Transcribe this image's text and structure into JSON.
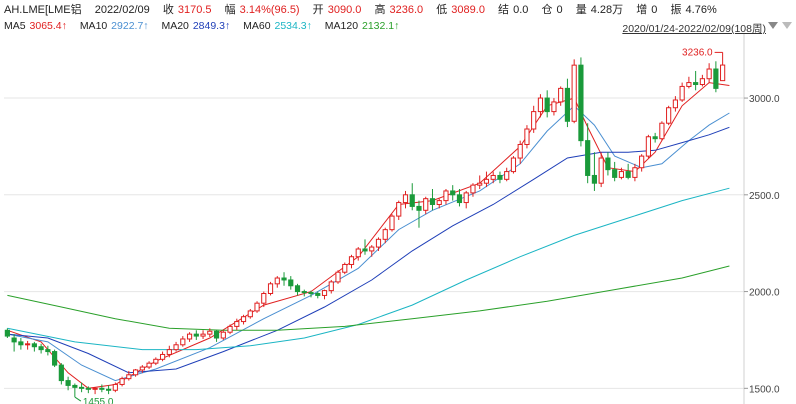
{
  "header": {
    "symbol": "AH.LME[LME铝",
    "date": "2022/02/09",
    "close_label": "收",
    "close_value": "3170.5",
    "change_label": "幅",
    "change_value": "3.14%(96.5)",
    "open_label": "开",
    "open_value": "3090.0",
    "high_label": "高",
    "high_value": "3236.0",
    "low_label": "低",
    "low_value": "3089.0",
    "settle_label": "结",
    "settle_value": "0.0",
    "oi_label": "仓",
    "oi_value": "0",
    "volume_label": "量",
    "volume_value": "4.28万",
    "increase_label": "增",
    "increase_value": "0",
    "amplitude_label": "振",
    "amplitude_value": "4.76%"
  },
  "ma_legend": [
    {
      "label": "MA5",
      "value": "3065.4↑"
    },
    {
      "label": "MA10",
      "value": "2922.7↑"
    },
    {
      "label": "MA20",
      "value": "2849.3↑"
    },
    {
      "label": "MA60",
      "value": "2534.3↑"
    },
    {
      "label": "MA120",
      "value": "2132.1↑"
    }
  ],
  "range_label": "2020/01/24-2022/02/09(108周)",
  "colors": {
    "up": "#e02020",
    "down": "#1a9a3a",
    "ma5": "#e02020",
    "ma10": "#4a8fd1",
    "ma20": "#1f3fb8",
    "ma60": "#1bb5c4",
    "ma120": "#2aa02a",
    "grid": "#e6e6e6"
  },
  "chart_data": {
    "type": "candlestick",
    "ylim": [
      1450,
      3300
    ],
    "y_ticks": [
      "1500.0",
      "2000.0",
      "2500.0",
      "3000.0"
    ],
    "annotations": {
      "max_label": "3236.0",
      "min_label": "1455.0"
    },
    "candles": [
      [
        1800,
        1810,
        1770,
        1760
      ],
      [
        1760,
        1780,
        1740,
        1690
      ],
      [
        1740,
        1760,
        1725,
        1700
      ],
      [
        1725,
        1745,
        1730,
        1700
      ],
      [
        1730,
        1740,
        1715,
        1690
      ],
      [
        1715,
        1730,
        1700,
        1680
      ],
      [
        1700,
        1720,
        1690,
        1670
      ],
      [
        1690,
        1700,
        1620,
        1610
      ],
      [
        1620,
        1630,
        1540,
        1520
      ],
      [
        1540,
        1560,
        1515,
        1490
      ],
      [
        1515,
        1525,
        1505,
        1455
      ],
      [
        1505,
        1530,
        1500,
        1480
      ],
      [
        1500,
        1510,
        1495,
        1475
      ],
      [
        1495,
        1505,
        1500,
        1470
      ],
      [
        1500,
        1520,
        1495,
        1480
      ],
      [
        1495,
        1515,
        1490,
        1470
      ],
      [
        1490,
        1530,
        1520,
        1480
      ],
      [
        1520,
        1560,
        1550,
        1510
      ],
      [
        1550,
        1590,
        1570,
        1540
      ],
      [
        1570,
        1600,
        1595,
        1560
      ],
      [
        1595,
        1620,
        1610,
        1580
      ],
      [
        1610,
        1640,
        1630,
        1600
      ],
      [
        1630,
        1660,
        1650,
        1620
      ],
      [
        1650,
        1690,
        1675,
        1640
      ],
      [
        1675,
        1720,
        1700,
        1660
      ],
      [
        1700,
        1740,
        1725,
        1690
      ],
      [
        1725,
        1770,
        1755,
        1715
      ],
      [
        1755,
        1790,
        1780,
        1740
      ],
      [
        1780,
        1800,
        1770,
        1750
      ],
      [
        1770,
        1800,
        1780,
        1755
      ],
      [
        1780,
        1810,
        1795,
        1765
      ],
      [
        1795,
        1800,
        1760,
        1740
      ],
      [
        1760,
        1800,
        1790,
        1750
      ],
      [
        1790,
        1830,
        1820,
        1780
      ],
      [
        1820,
        1860,
        1845,
        1800
      ],
      [
        1845,
        1880,
        1870,
        1830
      ],
      [
        1870,
        1910,
        1900,
        1860
      ],
      [
        1900,
        1950,
        1940,
        1890
      ],
      [
        1940,
        2000,
        1990,
        1920
      ],
      [
        1990,
        2050,
        2040,
        1980
      ],
      [
        2040,
        2080,
        2070,
        2020
      ],
      [
        2070,
        2100,
        2060,
        2030
      ],
      [
        2060,
        2080,
        2030,
        2010
      ],
      [
        2030,
        2040,
        2000,
        1980
      ],
      [
        2000,
        2010,
        1995,
        1975
      ],
      [
        1995,
        2005,
        1990,
        1970
      ],
      [
        1990,
        2000,
        1980,
        1965
      ],
      [
        1980,
        2010,
        2005,
        1960
      ],
      [
        2005,
        2060,
        2050,
        1990
      ],
      [
        2050,
        2110,
        2100,
        2040
      ],
      [
        2100,
        2150,
        2140,
        2090
      ],
      [
        2140,
        2190,
        2180,
        2120
      ],
      [
        2180,
        2230,
        2220,
        2160
      ],
      [
        2220,
        2270,
        2210,
        2190
      ],
      [
        2210,
        2240,
        2230,
        2180
      ],
      [
        2230,
        2280,
        2270,
        2210
      ],
      [
        2270,
        2330,
        2320,
        2250
      ],
      [
        2320,
        2400,
        2390,
        2310
      ],
      [
        2390,
        2470,
        2460,
        2370
      ],
      [
        2460,
        2520,
        2500,
        2430
      ],
      [
        2500,
        2560,
        2440,
        2420
      ],
      [
        2440,
        2470,
        2420,
        2330
      ],
      [
        2420,
        2490,
        2480,
        2400
      ],
      [
        2480,
        2530,
        2450,
        2420
      ],
      [
        2450,
        2480,
        2470,
        2430
      ],
      [
        2470,
        2530,
        2520,
        2450
      ],
      [
        2520,
        2550,
        2500,
        2470
      ],
      [
        2500,
        2530,
        2460,
        2440
      ],
      [
        2460,
        2520,
        2510,
        2430
      ],
      [
        2510,
        2560,
        2550,
        2490
      ],
      [
        2550,
        2600,
        2560,
        2530
      ],
      [
        2560,
        2620,
        2580,
        2540
      ],
      [
        2580,
        2620,
        2600,
        2560
      ],
      [
        2600,
        2620,
        2580,
        2560
      ],
      [
        2580,
        2640,
        2620,
        2570
      ],
      [
        2620,
        2700,
        2690,
        2610
      ],
      [
        2690,
        2780,
        2760,
        2660
      ],
      [
        2760,
        2860,
        2840,
        2740
      ],
      [
        2840,
        2960,
        2930,
        2820
      ],
      [
        2930,
        3020,
        3000,
        2900
      ],
      [
        3000,
        3040,
        2930,
        2900
      ],
      [
        2930,
        3000,
        2980,
        2910
      ],
      [
        2980,
        3060,
        3050,
        2960
      ],
      [
        3050,
        3100,
        2880,
        2850
      ],
      [
        2880,
        3200,
        3170,
        2870
      ],
      [
        3170,
        3210,
        2780,
        2750
      ],
      [
        2780,
        2870,
        2600,
        2560
      ],
      [
        2600,
        2720,
        2560,
        2520
      ],
      [
        2560,
        2720,
        2690,
        2540
      ],
      [
        2690,
        2720,
        2630,
        2600
      ],
      [
        2630,
        2670,
        2590,
        2570
      ],
      [
        2590,
        2640,
        2620,
        2580
      ],
      [
        2620,
        2660,
        2590,
        2580
      ],
      [
        2590,
        2660,
        2640,
        2570
      ],
      [
        2640,
        2710,
        2700,
        2620
      ],
      [
        2700,
        2810,
        2800,
        2690
      ],
      [
        2800,
        2820,
        2790,
        2770
      ],
      [
        2790,
        2880,
        2870,
        2780
      ],
      [
        2870,
        2960,
        2950,
        2860
      ],
      [
        2950,
        3010,
        2990,
        2930
      ],
      [
        2990,
        3080,
        3060,
        2980
      ],
      [
        3060,
        3110,
        3080,
        3050
      ],
      [
        3080,
        3140,
        3070,
        3040
      ],
      [
        3070,
        3120,
        3100,
        3060
      ],
      [
        3100,
        3180,
        3150,
        3080
      ],
      [
        3150,
        3190,
        3050,
        3030
      ],
      [
        3090,
        3236,
        3170.5,
        3089
      ]
    ],
    "ma": [
      {
        "name": "MA5",
        "color_key": "ma5",
        "x": [
          0,
          5,
          9,
          12,
          16,
          22,
          30,
          38,
          45,
          52,
          58,
          63,
          70,
          76,
          80,
          84,
          86,
          89,
          93,
          96,
          100,
          104,
          107
        ],
        "y": [
          1800,
          1740,
          1580,
          1500,
          1520,
          1640,
          1760,
          1930,
          2000,
          2180,
          2450,
          2470,
          2560,
          2750,
          2960,
          3000,
          2850,
          2640,
          2620,
          2720,
          2960,
          3080,
          3065
        ]
      },
      {
        "name": "MA10",
        "color_key": "ma10",
        "x": [
          0,
          6,
          11,
          16,
          22,
          30,
          38,
          45,
          52,
          58,
          63,
          70,
          76,
          80,
          84,
          87,
          90,
          94,
          97,
          101,
          104,
          107
        ],
        "y": [
          1780,
          1740,
          1620,
          1540,
          1600,
          1710,
          1860,
          1980,
          2120,
          2320,
          2420,
          2520,
          2660,
          2830,
          2960,
          2860,
          2700,
          2640,
          2660,
          2780,
          2860,
          2923
        ]
      },
      {
        "name": "MA20",
        "color_key": "ma20",
        "x": [
          0,
          6,
          12,
          18,
          25,
          32,
          40,
          47,
          54,
          60,
          66,
          72,
          78,
          83,
          88,
          92,
          96,
          100,
          104,
          107
        ],
        "y": [
          1780,
          1760,
          1680,
          1580,
          1600,
          1690,
          1800,
          1920,
          2060,
          2210,
          2340,
          2450,
          2580,
          2690,
          2720,
          2720,
          2730,
          2770,
          2810,
          2849
        ]
      },
      {
        "name": "MA60",
        "color_key": "ma60",
        "x": [
          0,
          10,
          20,
          28,
          36,
          44,
          52,
          60,
          68,
          76,
          84,
          92,
          100,
          107
        ],
        "y": [
          1810,
          1740,
          1700,
          1700,
          1720,
          1760,
          1830,
          1930,
          2060,
          2180,
          2290,
          2380,
          2470,
          2534
        ]
      },
      {
        "name": "MA120",
        "color_key": "ma120",
        "x": [
          0,
          8,
          16,
          24,
          32,
          40,
          50,
          60,
          70,
          80,
          90,
          100,
          107
        ],
        "y": [
          1980,
          1920,
          1860,
          1810,
          1800,
          1800,
          1820,
          1860,
          1900,
          1950,
          2010,
          2070,
          2132
        ]
      }
    ]
  }
}
